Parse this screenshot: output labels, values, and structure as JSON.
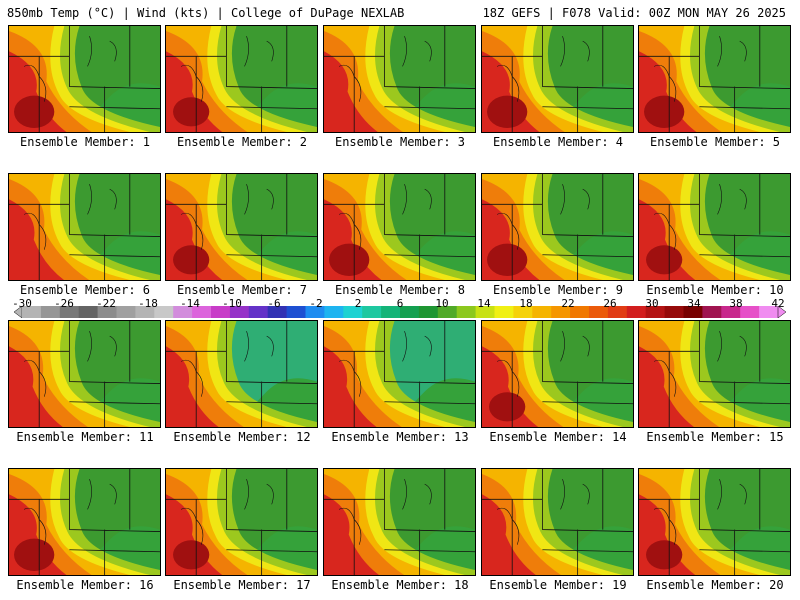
{
  "header": {
    "left": "850mb Temp (°C) | Wind (kts) | College of DuPage NEXLAB",
    "right": "18Z GEFS | F078 Valid: 00Z MON MAY 26 2025"
  },
  "colorbar": {
    "min": -30,
    "max": 42,
    "ticks": [
      "-30",
      "-26",
      "-22",
      "-18",
      "-14",
      "-10",
      "-6",
      "-2",
      "2",
      "6",
      "10",
      "14",
      "18",
      "22",
      "26",
      "30",
      "34",
      "38",
      "42"
    ],
    "colors": [
      "#b4b4b4",
      "#969696",
      "#787878",
      "#646464",
      "#8c8c8c",
      "#a0a0a0",
      "#b4b4b4",
      "#c8c8c8",
      "#d28cdc",
      "#dc64dc",
      "#c83cc8",
      "#9632c8",
      "#6432c8",
      "#3232b4",
      "#1e50d2",
      "#1e8cf0",
      "#1eb4f0",
      "#1ed2d2",
      "#1ec8a0",
      "#14b478",
      "#14a050",
      "#1e9632",
      "#50aa28",
      "#8cc81e",
      "#c8e114",
      "#f0f014",
      "#f5d20a",
      "#f5b400",
      "#f59600",
      "#f07800",
      "#eb5a0a",
      "#e13c14",
      "#d21e1e",
      "#b41414",
      "#960a0a",
      "#780000",
      "#a01450",
      "#c8288c",
      "#e650c8",
      "#f08cf0"
    ]
  },
  "panels": [
    {
      "label": "Ensemble Member: 1"
    },
    {
      "label": "Ensemble Member: 2"
    },
    {
      "label": "Ensemble Member: 3"
    },
    {
      "label": "Ensemble Member: 4"
    },
    {
      "label": "Ensemble Member: 5"
    },
    {
      "label": "Ensemble Member: 6"
    },
    {
      "label": "Ensemble Member: 7"
    },
    {
      "label": "Ensemble Member: 8"
    },
    {
      "label": "Ensemble Member: 9"
    },
    {
      "label": "Ensemble Member: 10"
    },
    {
      "label": "Ensemble Member: 11"
    },
    {
      "label": "Ensemble Member: 12"
    },
    {
      "label": "Ensemble Member: 13"
    },
    {
      "label": "Ensemble Member: 14"
    },
    {
      "label": "Ensemble Member: 15"
    },
    {
      "label": "Ensemble Member: 16"
    },
    {
      "label": "Ensemble Member: 17"
    },
    {
      "label": "Ensemble Member: 18"
    },
    {
      "label": "Ensemble Member: 19"
    },
    {
      "label": "Ensemble Member: 20"
    }
  ]
}
